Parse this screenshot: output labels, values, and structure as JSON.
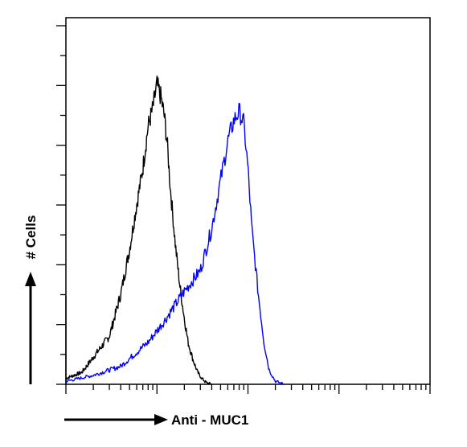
{
  "chart_data": {
    "type": "line",
    "title": "",
    "xlabel": "Anti - MUC1",
    "ylabel": "# Cells",
    "x_scale": "log",
    "xlim": [
      1,
      10000
    ],
    "ylim": [
      0,
      1
    ],
    "grid": false,
    "legend": "none",
    "series": [
      {
        "color": "#000000",
        "x": [
          1,
          1.5,
          2,
          3,
          4,
          5,
          6,
          7,
          8,
          9,
          10,
          11,
          12,
          13,
          14,
          16,
          18,
          20,
          22,
          25,
          28,
          31,
          35,
          40
        ],
        "y": [
          0.02,
          0.04,
          0.09,
          0.16,
          0.3,
          0.45,
          0.6,
          0.72,
          0.86,
          0.92,
          1.0,
          0.96,
          0.9,
          0.8,
          0.66,
          0.46,
          0.32,
          0.22,
          0.14,
          0.08,
          0.04,
          0.02,
          0.005,
          0.0
        ]
      },
      {
        "color": "#0000ff",
        "x": [
          1,
          2,
          4,
          8,
          12,
          20,
          30,
          40,
          50,
          60,
          70,
          80,
          90,
          100,
          110,
          130,
          150,
          170,
          200,
          250
        ],
        "y": [
          0.01,
          0.03,
          0.06,
          0.14,
          0.21,
          0.31,
          0.38,
          0.52,
          0.68,
          0.81,
          0.88,
          0.91,
          0.87,
          0.72,
          0.52,
          0.3,
          0.14,
          0.05,
          0.01,
          0.0
        ]
      }
    ]
  }
}
